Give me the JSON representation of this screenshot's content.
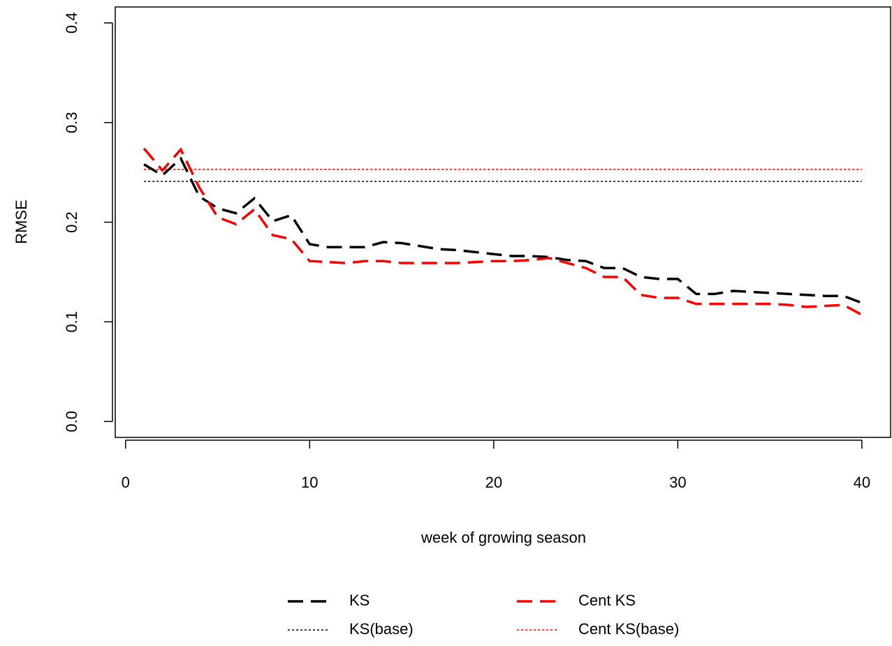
{
  "chart_data": {
    "type": "line",
    "xlabel": "week of growing season",
    "ylabel": "RMSE",
    "x": [
      1,
      2,
      3,
      4,
      5,
      6,
      7,
      8,
      9,
      10,
      11,
      12,
      13,
      14,
      15,
      16,
      17,
      18,
      19,
      20,
      21,
      22,
      23,
      24,
      25,
      26,
      27,
      28,
      29,
      30,
      31,
      32,
      33,
      34,
      35,
      36,
      37,
      38,
      39,
      40
    ],
    "series": [
      {
        "name": "KS",
        "color": "#000000",
        "dash": "long",
        "values": [
          0.258,
          0.247,
          0.264,
          0.226,
          0.214,
          0.209,
          0.224,
          0.201,
          0.207,
          0.178,
          0.175,
          0.175,
          0.175,
          0.18,
          0.179,
          0.176,
          0.173,
          0.172,
          0.17,
          0.168,
          0.166,
          0.166,
          0.165,
          0.162,
          0.161,
          0.154,
          0.154,
          0.145,
          0.143,
          0.143,
          0.128,
          0.128,
          0.131,
          0.13,
          0.129,
          0.128,
          0.127,
          0.126,
          0.126,
          0.119
        ]
      },
      {
        "name": "Cent KS",
        "color": "#ff0000",
        "dash": "long",
        "values": [
          0.274,
          0.252,
          0.273,
          0.235,
          0.205,
          0.198,
          0.213,
          0.187,
          0.183,
          0.161,
          0.16,
          0.159,
          0.161,
          0.161,
          0.159,
          0.159,
          0.159,
          0.159,
          0.16,
          0.161,
          0.161,
          0.162,
          0.164,
          0.159,
          0.154,
          0.145,
          0.145,
          0.127,
          0.124,
          0.124,
          0.118,
          0.118,
          0.118,
          0.118,
          0.118,
          0.117,
          0.115,
          0.116,
          0.117,
          0.107
        ]
      }
    ],
    "baselines": [
      {
        "name": "KS(base)",
        "color": "#000000",
        "dash": "dotted",
        "value": 0.241
      },
      {
        "name": "Cent KS(base)",
        "color": "#ff0000",
        "dash": "dotted",
        "value": 0.253
      }
    ],
    "xlim": [
      -0.56,
      41.56
    ],
    "xticks": [
      0,
      10,
      20,
      30,
      40
    ],
    "ylim": [
      -0.016,
      0.416
    ],
    "yticks": [
      {
        "value": 0,
        "label": "0.0"
      },
      0.1,
      0.2,
      0.3,
      0.4
    ]
  }
}
